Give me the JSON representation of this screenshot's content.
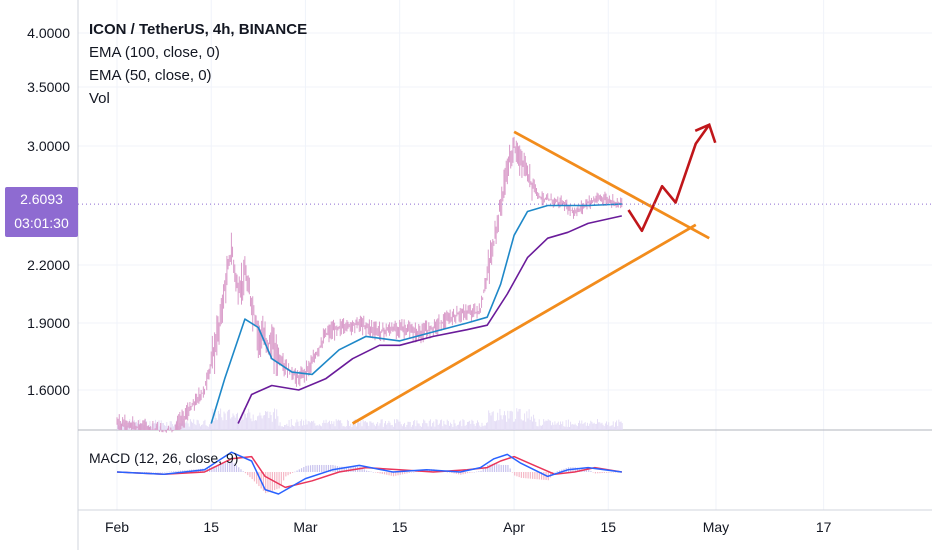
{
  "legend": {
    "title": "ICON / TetherUS, 4h, BINANCE",
    "ema100": "EMA (100, close, 0)",
    "ema50": "EMA (50, close, 0)",
    "vol": "Vol"
  },
  "macd_label": "MACD (12, 26, close, 9)",
  "last_price": {
    "value": "2.6093",
    "countdown": "03:01:30"
  },
  "colors": {
    "candle": "#d99bc9",
    "ema100": "#6a1b9a",
    "ema50": "#1e88c8",
    "trendline": "#f28c1c",
    "projection": "#c0161a",
    "macd": "#2962ff",
    "signal": "#e9355a",
    "price_label_bg": "#8e6bd1"
  },
  "chart_data": {
    "type": "line",
    "y_ticks": [
      "4.0000",
      "3.5000",
      "3.0000",
      "2.2000",
      "1.9000",
      "1.6000"
    ],
    "y_tick_values": [
      4.0,
      3.5,
      3.0,
      2.2,
      1.9,
      1.6
    ],
    "x_ticks": [
      "Feb",
      "15",
      "Mar",
      "15",
      "Apr",
      "15",
      "May",
      "17"
    ],
    "x_tick_dates": [
      "2019-02-01",
      "2019-02-15",
      "2019-03-01",
      "2019-03-15",
      "2019-04-01",
      "2019-04-15",
      "2019-05-01",
      "2019-05-17"
    ],
    "price": [
      [
        "2019-02-01",
        1.45
      ],
      [
        "2019-02-06",
        1.42
      ],
      [
        "2019-02-09",
        1.4
      ],
      [
        "2019-02-12",
        1.52
      ],
      [
        "2019-02-14",
        1.6
      ],
      [
        "2019-02-16",
        1.85
      ],
      [
        "2019-02-18",
        2.3
      ],
      [
        "2019-02-19",
        2.05
      ],
      [
        "2019-02-20",
        2.15
      ],
      [
        "2019-02-22",
        1.85
      ],
      [
        "2019-02-24",
        1.8
      ],
      [
        "2019-02-26",
        1.7
      ],
      [
        "2019-02-28",
        1.65
      ],
      [
        "2019-03-02",
        1.72
      ],
      [
        "2019-03-04",
        1.85
      ],
      [
        "2019-03-06",
        1.88
      ],
      [
        "2019-03-09",
        1.9
      ],
      [
        "2019-03-12",
        1.86
      ],
      [
        "2019-03-15",
        1.88
      ],
      [
        "2019-03-18",
        1.85
      ],
      [
        "2019-03-21",
        1.9
      ],
      [
        "2019-03-24",
        1.95
      ],
      [
        "2019-03-27",
        1.96
      ],
      [
        "2019-03-29",
        2.35
      ],
      [
        "2019-03-31",
        2.85
      ],
      [
        "2019-04-01",
        3.0
      ],
      [
        "2019-04-03",
        2.8
      ],
      [
        "2019-04-05",
        2.65
      ],
      [
        "2019-04-08",
        2.62
      ],
      [
        "2019-04-10",
        2.55
      ],
      [
        "2019-04-12",
        2.62
      ],
      [
        "2019-04-14",
        2.65
      ],
      [
        "2019-04-17",
        2.61
      ]
    ],
    "ema50": [
      [
        "2019-02-15",
        1.45
      ],
      [
        "2019-02-17",
        1.65
      ],
      [
        "2019-02-20",
        1.92
      ],
      [
        "2019-02-22",
        1.88
      ],
      [
        "2019-02-24",
        1.74
      ],
      [
        "2019-02-27",
        1.68
      ],
      [
        "2019-03-02",
        1.67
      ],
      [
        "2019-03-06",
        1.78
      ],
      [
        "2019-03-10",
        1.84
      ],
      [
        "2019-03-15",
        1.82
      ],
      [
        "2019-03-20",
        1.86
      ],
      [
        "2019-03-25",
        1.9
      ],
      [
        "2019-03-28",
        1.93
      ],
      [
        "2019-03-30",
        2.1
      ],
      [
        "2019-04-01",
        2.4
      ],
      [
        "2019-04-03",
        2.56
      ],
      [
        "2019-04-06",
        2.6
      ],
      [
        "2019-04-09",
        2.6
      ],
      [
        "2019-04-12",
        2.6
      ],
      [
        "2019-04-17",
        2.61
      ]
    ],
    "ema100": [
      [
        "2019-02-19",
        1.45
      ],
      [
        "2019-02-21",
        1.58
      ],
      [
        "2019-02-24",
        1.62
      ],
      [
        "2019-02-28",
        1.6
      ],
      [
        "2019-03-04",
        1.65
      ],
      [
        "2019-03-08",
        1.74
      ],
      [
        "2019-03-12",
        1.8
      ],
      [
        "2019-03-15",
        1.8
      ],
      [
        "2019-03-20",
        1.84
      ],
      [
        "2019-03-25",
        1.87
      ],
      [
        "2019-03-28",
        1.89
      ],
      [
        "2019-03-31",
        2.05
      ],
      [
        "2019-04-03",
        2.25
      ],
      [
        "2019-04-06",
        2.38
      ],
      [
        "2019-04-09",
        2.42
      ],
      [
        "2019-04-12",
        2.48
      ],
      [
        "2019-04-17",
        2.53
      ]
    ],
    "resistance_line": [
      [
        "2019-04-01",
        3.12
      ],
      [
        "2019-04-30",
        2.38
      ]
    ],
    "support_line": [
      [
        "2019-03-08",
        1.45
      ],
      [
        "2019-04-28",
        2.47
      ]
    ],
    "projection": [
      [
        "2019-04-18",
        2.57
      ],
      [
        "2019-04-20",
        2.43
      ],
      [
        "2019-04-23",
        2.73
      ],
      [
        "2019-04-25",
        2.62
      ],
      [
        "2019-04-28",
        3.02
      ],
      [
        "2019-04-30",
        3.18
      ]
    ],
    "macd_line": [
      [
        "2019-02-01",
        0.0
      ],
      [
        "2019-02-08",
        -0.01
      ],
      [
        "2019-02-14",
        0.01
      ],
      [
        "2019-02-18",
        0.09
      ],
      [
        "2019-02-21",
        0.05
      ],
      [
        "2019-02-23",
        -0.08
      ],
      [
        "2019-02-25",
        -0.1
      ],
      [
        "2019-03-01",
        -0.03
      ],
      [
        "2019-03-05",
        0.01
      ],
      [
        "2019-03-09",
        0.03
      ],
      [
        "2019-03-14",
        0.0
      ],
      [
        "2019-03-19",
        0.01
      ],
      [
        "2019-03-24",
        0.0
      ],
      [
        "2019-03-27",
        0.02
      ],
      [
        "2019-03-29",
        0.06
      ],
      [
        "2019-03-31",
        0.08
      ],
      [
        "2019-04-02",
        0.04
      ],
      [
        "2019-04-06",
        -0.02
      ],
      [
        "2019-04-09",
        0.01
      ],
      [
        "2019-04-12",
        0.02
      ],
      [
        "2019-04-17",
        0.0
      ]
    ],
    "signal_line": [
      [
        "2019-02-01",
        0.0
      ],
      [
        "2019-02-08",
        -0.01
      ],
      [
        "2019-02-14",
        0.0
      ],
      [
        "2019-02-18",
        0.06
      ],
      [
        "2019-02-21",
        0.07
      ],
      [
        "2019-02-23",
        -0.02
      ],
      [
        "2019-02-26",
        -0.07
      ],
      [
        "2019-03-02",
        -0.04
      ],
      [
        "2019-03-06",
        0.0
      ],
      [
        "2019-03-10",
        0.02
      ],
      [
        "2019-03-15",
        0.01
      ],
      [
        "2019-03-20",
        0.0
      ],
      [
        "2019-03-25",
        0.01
      ],
      [
        "2019-03-28",
        0.02
      ],
      [
        "2019-03-30",
        0.05
      ],
      [
        "2019-04-01",
        0.07
      ],
      [
        "2019-04-04",
        0.03
      ],
      [
        "2019-04-07",
        -0.01
      ],
      [
        "2019-04-10",
        0.0
      ],
      [
        "2019-04-13",
        0.02
      ],
      [
        "2019-04-17",
        0.0
      ]
    ],
    "grid": true
  }
}
